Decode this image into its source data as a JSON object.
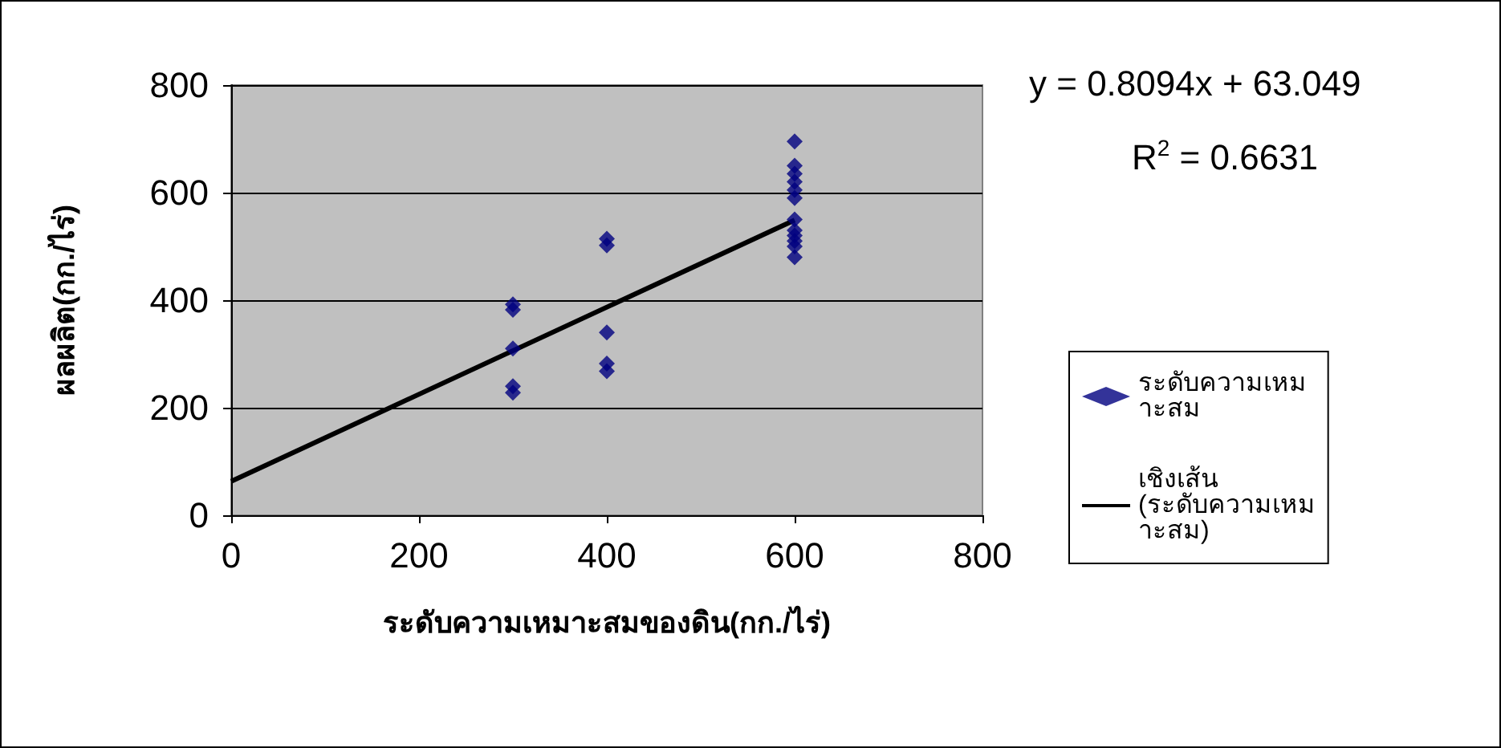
{
  "chart_data": {
    "type": "scatter",
    "xlabel": "ระดับความเหมาะสมของดิน(กก./ไร่)",
    "ylabel": "ผลผลิต(กก./ไร่)",
    "series": [
      {
        "name": "ระดับความเหมาะสม",
        "color": "#000080",
        "marker": "diamond",
        "x": [
          300,
          300,
          300,
          300,
          300,
          400,
          400,
          400,
          400,
          400,
          600,
          600,
          600,
          600,
          600,
          600,
          600,
          600,
          600,
          600,
          600,
          600
        ],
        "values": [
          392,
          382,
          310,
          240,
          228,
          514,
          502,
          340,
          282,
          268,
          695,
          650,
          635,
          620,
          605,
          590,
          550,
          530,
          520,
          510,
          500,
          480
        ]
      },
      {
        "name": "เชิงเส้น (ระดับความเหมาะสม)",
        "type": "line",
        "color": "#000000",
        "x": [
          0,
          600
        ],
        "values": [
          63,
          549
        ]
      }
    ],
    "xlim": [
      0,
      800
    ],
    "xticks": [
      0,
      200,
      400,
      600,
      800
    ],
    "ylim": [
      0,
      800
    ],
    "yticks": [
      0,
      200,
      400,
      600,
      800
    ],
    "grid": "y",
    "legend": "right",
    "annotations": [
      "y = 0.8094x + 63.049",
      "R$^{2}$ = 0.6631"
    ]
  }
}
